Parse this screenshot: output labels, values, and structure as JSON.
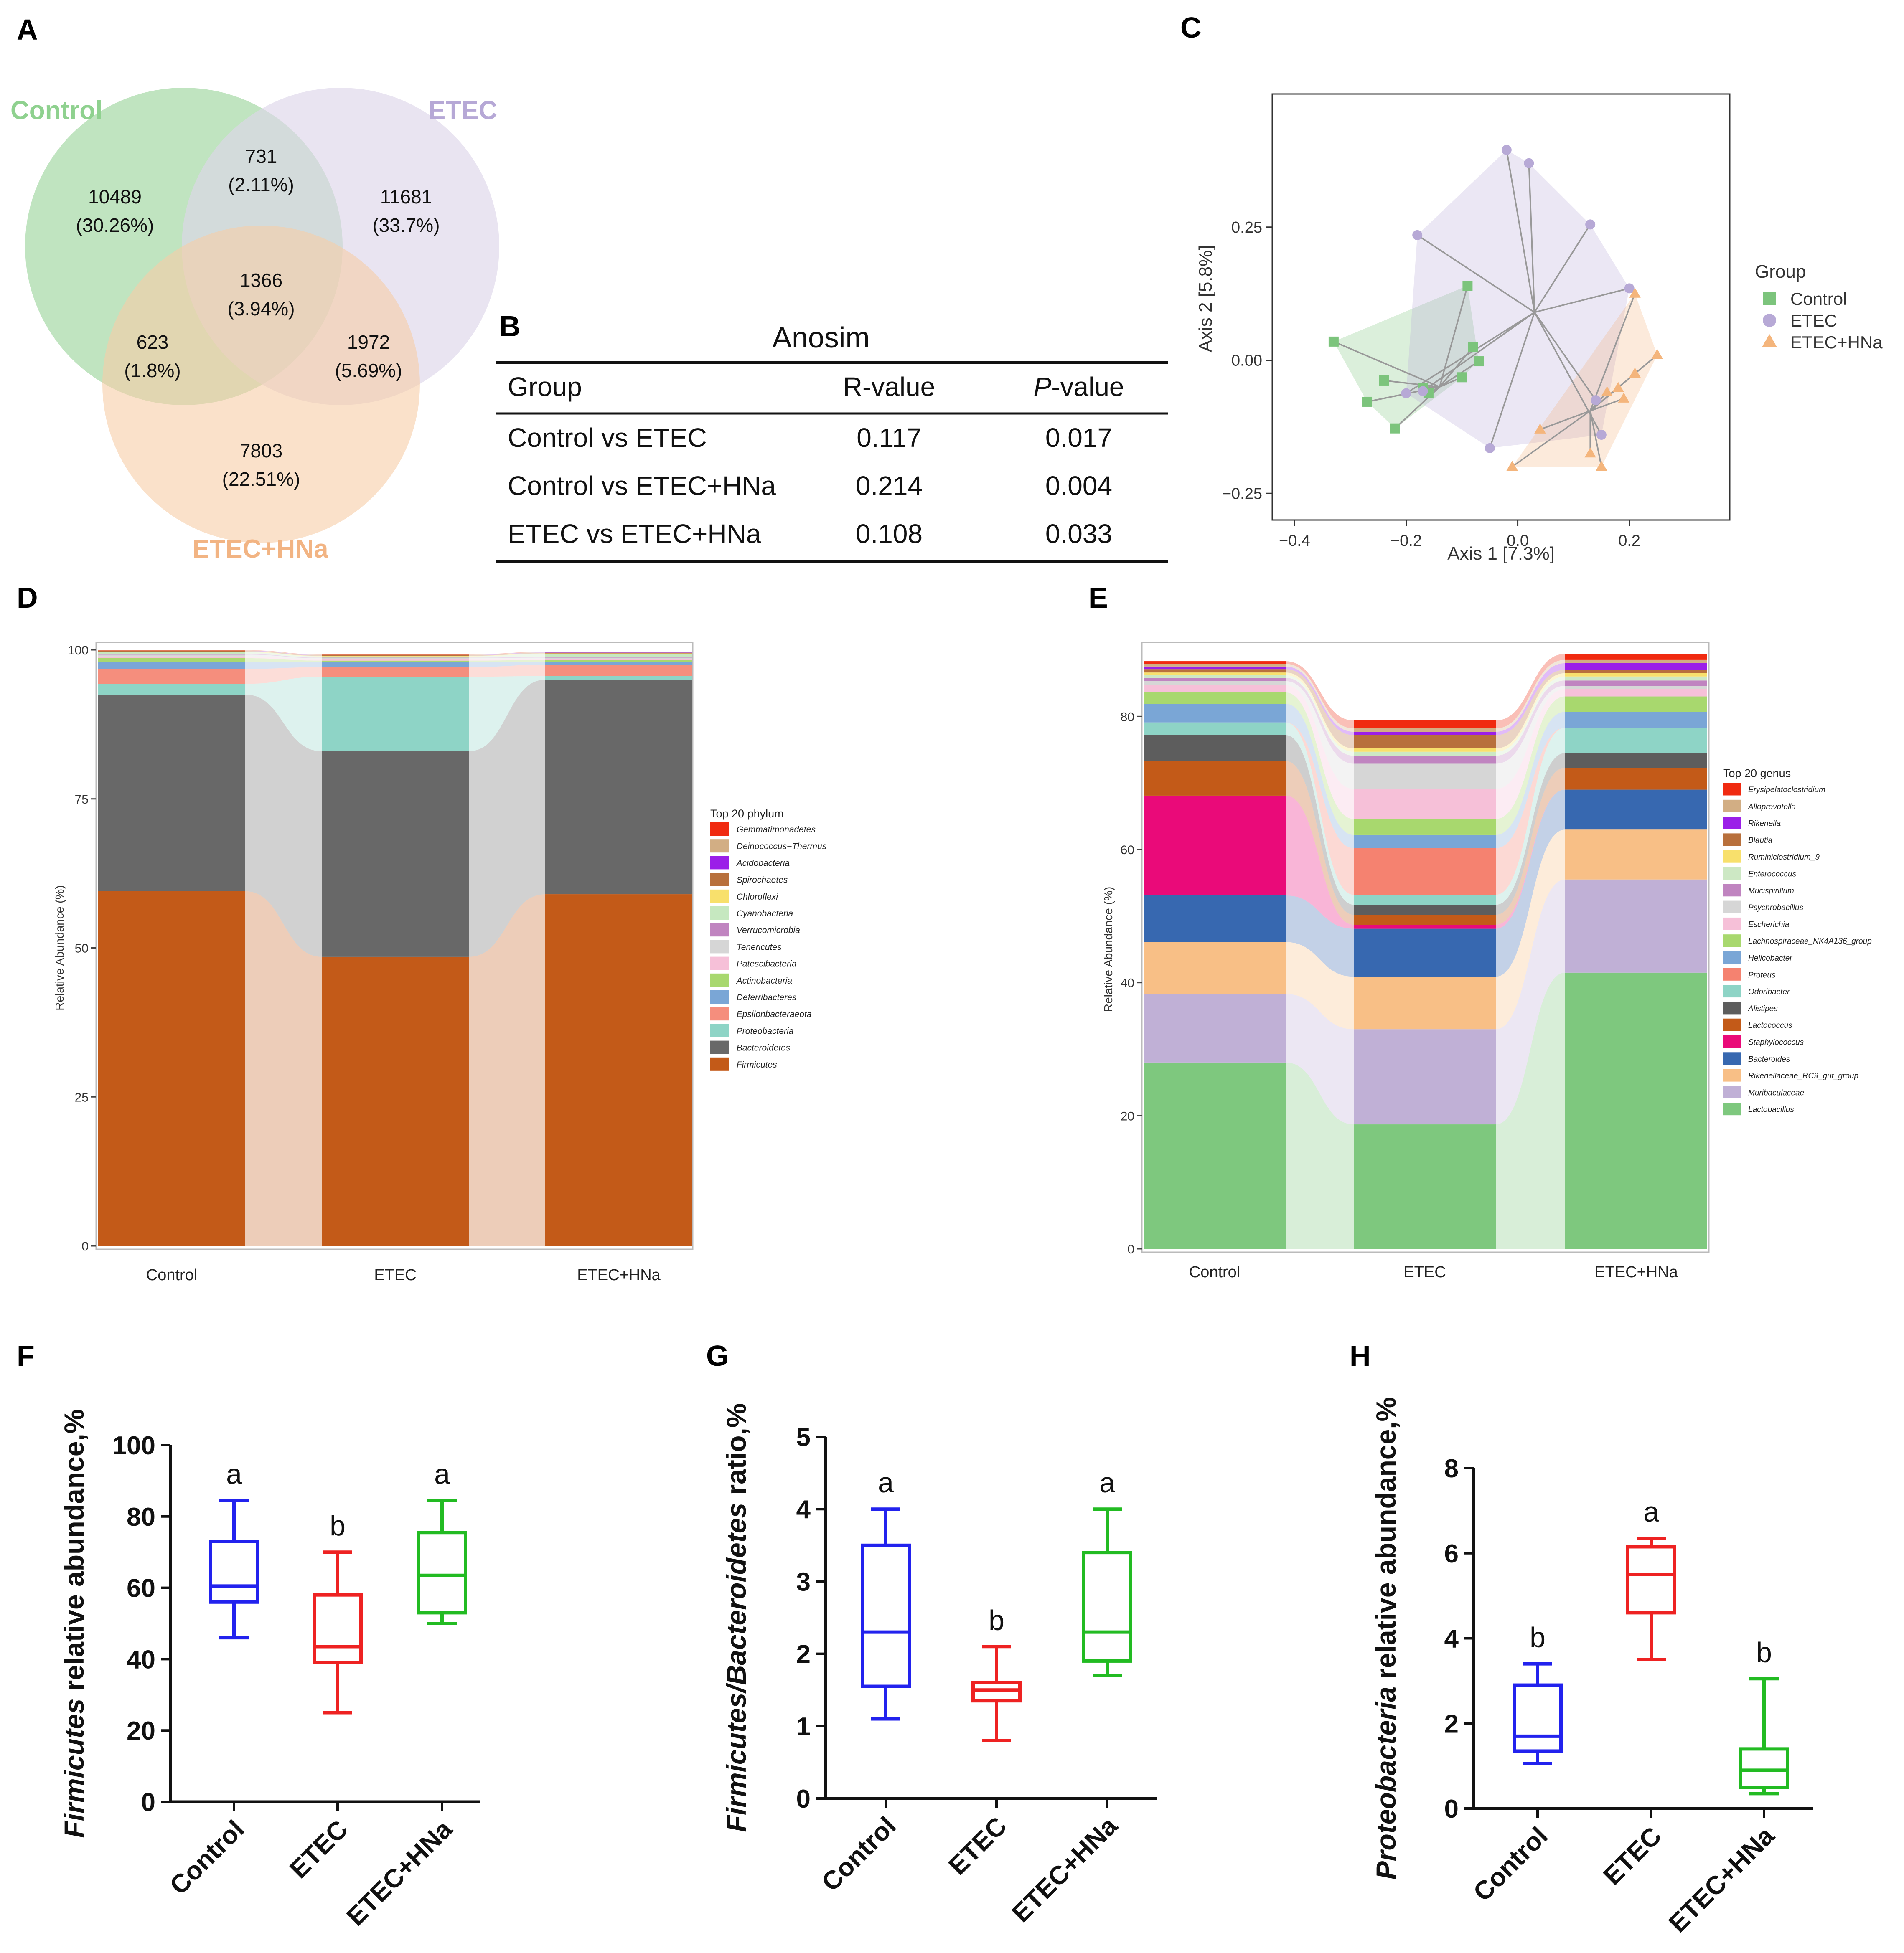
{
  "panel_labels": {
    "A": "A",
    "B": "B",
    "C": "C",
    "D": "D",
    "E": "E",
    "F": "F",
    "G": "G",
    "H": "H"
  },
  "colors": {
    "control": "#2222ee",
    "etec": "#ee2222",
    "etec_hna": "#22bb22",
    "venn_control": "#bde3bd",
    "venn_etec": "#ddd6ea",
    "venn_hna": "#f6cda6",
    "venn_label_control": "#8fd18f",
    "venn_label_etec": "#b6a8d6",
    "venn_label_hna": "#f2b483"
  },
  "venn": {
    "labels": {
      "control": "Control",
      "etec": "ETEC",
      "hna": "ETEC+HNa"
    },
    "regions": [
      {
        "id": "c_only",
        "count": "10489",
        "pct": "(30.26%)"
      },
      {
        "id": "ce",
        "count": "731",
        "pct": "(2.11%)"
      },
      {
        "id": "e_only",
        "count": "11681",
        "pct": "(33.7%)"
      },
      {
        "id": "all",
        "count": "1366",
        "pct": "(3.94%)"
      },
      {
        "id": "ch",
        "count": "623",
        "pct": "(1.8%)"
      },
      {
        "id": "eh",
        "count": "1972",
        "pct": "(5.69%)"
      },
      {
        "id": "h_only",
        "count": "7803",
        "pct": "(22.51%)"
      }
    ]
  },
  "anosim": {
    "title": "Anosim",
    "headers": [
      "Group",
      "R-value",
      "P-value"
    ],
    "rows": [
      [
        "Control vs ETEC",
        "0.117",
        "0.017"
      ],
      [
        "Control vs ETEC+HNa",
        "0.214",
        "0.004"
      ],
      [
        "ETEC vs ETEC+HNa",
        "0.108",
        "0.033"
      ]
    ]
  },
  "chart_data": [
    {
      "panel": "C",
      "type": "scatter",
      "xlabel": "Axis 1 [7.3%]",
      "ylabel": "Axis 2 [5.8%]",
      "xlim": [
        -0.44,
        0.38
      ],
      "ylim": [
        -0.3,
        0.5
      ],
      "xticks": [
        -0.4,
        -0.2,
        0,
        0.2
      ],
      "xticklabels": [
        "−0.4",
        "−0.2",
        "0.0",
        "0.2"
      ],
      "yticks": [
        -0.25,
        0,
        0.25
      ],
      "yticklabels": [
        "−0.25",
        "0.00",
        "0.25"
      ],
      "legend_title": "Group",
      "legend_position": "right",
      "series": [
        {
          "name": "Control",
          "color": "#7cc47c",
          "marker": "square",
          "centroid": [
            -0.14,
            -0.05
          ],
          "points": [
            [
              -0.33,
              0.035
            ],
            [
              -0.09,
              0.14
            ],
            [
              -0.08,
              0.025
            ],
            [
              -0.07,
              -0.002
            ],
            [
              -0.1,
              -0.032
            ],
            [
              -0.24,
              -0.038
            ],
            [
              -0.27,
              -0.078
            ],
            [
              -0.22,
              -0.128
            ],
            [
              -0.16,
              -0.062
            ],
            [
              -0.17,
              -0.052
            ]
          ]
        },
        {
          "name": "ETEC",
          "color": "#b7a9d6",
          "marker": "circle",
          "centroid": [
            0.03,
            0.09
          ],
          "points": [
            [
              -0.02,
              0.395
            ],
            [
              0.02,
              0.37
            ],
            [
              0.13,
              0.255
            ],
            [
              -0.18,
              0.235
            ],
            [
              0.2,
              0.135
            ],
            [
              -0.05,
              -0.165
            ],
            [
              0.15,
              -0.14
            ],
            [
              0.14,
              -0.075
            ],
            [
              -0.2,
              -0.062
            ],
            [
              -0.17,
              -0.058
            ]
          ]
        },
        {
          "name": "ETEC+HNa",
          "color": "#f4b57c",
          "marker": "triangle",
          "centroid": [
            0.13,
            -0.095
          ],
          "points": [
            [
              0.21,
              0.125
            ],
            [
              0.25,
              0.01
            ],
            [
              0.21,
              -0.025
            ],
            [
              0.18,
              -0.052
            ],
            [
              0.19,
              -0.072
            ],
            [
              0.04,
              -0.13
            ],
            [
              0.13,
              -0.175
            ],
            [
              0.15,
              -0.2
            ],
            [
              -0.01,
              -0.2
            ],
            [
              0.16,
              -0.06
            ]
          ]
        }
      ]
    },
    {
      "panel": "D",
      "type": "bar",
      "stacked": true,
      "categories": [
        "Control",
        "ETEC",
        "ETEC+HNa"
      ],
      "ylabel": "Relative Abundance (%)",
      "ylim": [
        0,
        100
      ],
      "yticks": [
        0,
        25,
        50,
        75,
        100
      ],
      "legend_title": "Top 20 phylum",
      "series": [
        {
          "name": "Firmicutes",
          "color": "#c35a18",
          "values": [
            59.5,
            48.5,
            59
          ]
        },
        {
          "name": "Bacteroidetes",
          "color": "#686868",
          "values": [
            33,
            34.5,
            36
          ]
        },
        {
          "name": "Proteobacteria",
          "color": "#8ed4c6",
          "values": [
            1.8,
            12.5,
            0.6
          ]
        },
        {
          "name": "Epsilonbacteraeota",
          "color": "#f58e7d",
          "values": [
            2.5,
            1.6,
            1.9
          ]
        },
        {
          "name": "Deferribacteres",
          "color": "#7aa6d6",
          "values": [
            1.2,
            0.8,
            0.5
          ]
        },
        {
          "name": "Actinobacteria",
          "color": "#a8d86e",
          "values": [
            0.6,
            0.3,
            0.3
          ]
        },
        {
          "name": "Patescibacteria",
          "color": "#f6c0d8",
          "values": [
            0.3,
            0.2,
            0.2
          ]
        },
        {
          "name": "Tenericutes",
          "color": "#d6d6d6",
          "values": [
            0.3,
            0.2,
            0.2
          ]
        },
        {
          "name": "Verrucomicrobia",
          "color": "#c084c0",
          "values": [
            0.1,
            0.1,
            0.1
          ]
        },
        {
          "name": "Cyanobacteria",
          "color": "#c6e8c0",
          "values": [
            0.3,
            0.2,
            0.5
          ]
        },
        {
          "name": "Chloroflexi",
          "color": "#f8e06c",
          "values": [
            0.1,
            0.1,
            0.1
          ]
        },
        {
          "name": "Spirochaetes",
          "color": "#b8703c",
          "values": [
            0.1,
            0.1,
            0.1
          ]
        },
        {
          "name": "Acidobacteria",
          "color": "#9b1fe8",
          "values": [
            0.05,
            0.05,
            0.05
          ]
        },
        {
          "name": "Deinococcus−Thermus",
          "color": "#d2ae84",
          "values": [
            0.05,
            0.05,
            0.05
          ]
        },
        {
          "name": "Gemmatimonadetes",
          "color": "#f02a10",
          "values": [
            0.05,
            0.05,
            0.05
          ]
        }
      ]
    },
    {
      "panel": "E",
      "type": "bar",
      "stacked": true,
      "categories": [
        "Control",
        "ETEC",
        "ETEC+HNa"
      ],
      "ylabel": "Relative Abundance (%)",
      "ylim": [
        0,
        90
      ],
      "yticks": [
        0,
        20,
        40,
        60,
        80
      ],
      "legend_title": "Top 20 genus",
      "series": [
        {
          "name": "Lactobacillus",
          "color": "#7ec87e",
          "values": [
            28,
            18.7,
            41.5
          ]
        },
        {
          "name": "Muribaculaceae",
          "color": "#c0b0d6",
          "values": [
            10.3,
            14.3,
            14
          ]
        },
        {
          "name": "Rikenellaceae_RC9_gut_group",
          "color": "#f8bf86",
          "values": [
            7.8,
            7.9,
            7.5
          ]
        },
        {
          "name": "Bacteroides",
          "color": "#3768b0",
          "values": [
            7,
            7.2,
            6
          ]
        },
        {
          "name": "Staphylococcus",
          "color": "#ea0a79",
          "values": [
            15,
            0.6,
            0
          ]
        },
        {
          "name": "Lactococcus",
          "color": "#c35a18",
          "values": [
            5.2,
            1.5,
            3.3
          ]
        },
        {
          "name": "Alistipes",
          "color": "#5d5d5d",
          "values": [
            3.9,
            1.5,
            2.2
          ]
        },
        {
          "name": "Odoribacter",
          "color": "#8ed4c6",
          "values": [
            1.9,
            1.5,
            3.8
          ]
        },
        {
          "name": "Proteus",
          "color": "#f58270",
          "values": [
            0,
            7,
            0
          ]
        },
        {
          "name": "Helicobacter",
          "color": "#7aa6d6",
          "values": [
            2.8,
            2,
            2.4
          ]
        },
        {
          "name": "Lachnospiraceae_NK4A136_group",
          "color": "#a8d86e",
          "values": [
            1.7,
            2.4,
            2.3
          ]
        },
        {
          "name": "Escherichia",
          "color": "#f6c0d8",
          "values": [
            1.1,
            4.5,
            1.1
          ]
        },
        {
          "name": "Psychrobacillus",
          "color": "#d6d6d6",
          "values": [
            0.6,
            3.8,
            0.5
          ]
        },
        {
          "name": "Mucispirillum",
          "color": "#c084c0",
          "values": [
            0.5,
            1.2,
            0.8
          ]
        },
        {
          "name": "Enterococcus",
          "color": "#cde8c4",
          "values": [
            0.4,
            0.6,
            0.6
          ]
        },
        {
          "name": "Ruminiclostridium_9",
          "color": "#f8e06c",
          "values": [
            0.4,
            0.5,
            0.5
          ]
        },
        {
          "name": "Blautia",
          "color": "#b8703c",
          "values": [
            0.5,
            2,
            0.5
          ]
        },
        {
          "name": "Rikenella",
          "color": "#9b1fe8",
          "values": [
            0.4,
            0.5,
            1
          ]
        },
        {
          "name": "Alloprevotella",
          "color": "#d2ae84",
          "values": [
            0.4,
            0.5,
            0.5
          ]
        },
        {
          "name": "Erysipelatoclostridium",
          "color": "#f02a10",
          "values": [
            0.4,
            1.2,
            0.9
          ]
        }
      ]
    },
    {
      "panel": "F",
      "type": "box",
      "categories": [
        "Control",
        "ETEC",
        "ETEC+HNa"
      ],
      "ylabel_italic": "Firmicutes",
      "ylabel_rest": " relative abundance,%",
      "ylim": [
        0,
        100
      ],
      "yticks": [
        0,
        20,
        40,
        60,
        80,
        100
      ],
      "boxes": [
        {
          "min": 46,
          "q1": 56,
          "median": 60.5,
          "q3": 73,
          "max": 84.5,
          "letter": "a"
        },
        {
          "min": 25,
          "q1": 39,
          "median": 43.5,
          "q3": 58,
          "max": 70,
          "letter": "b"
        },
        {
          "min": 50,
          "q1": 53,
          "median": 63.5,
          "q3": 75.5,
          "max": 84.5,
          "letter": "a"
        }
      ]
    },
    {
      "panel": "G",
      "type": "box",
      "categories": [
        "Control",
        "ETEC",
        "ETEC+HNa"
      ],
      "ylabel_italic": "Firmicutes/Bacteroidetes",
      "ylabel_rest": " ratio,%",
      "ylim": [
        0,
        5
      ],
      "yticks": [
        0,
        1,
        2,
        3,
        4,
        5
      ],
      "boxes": [
        {
          "min": 1.1,
          "q1": 1.55,
          "median": 2.3,
          "q3": 3.5,
          "max": 4,
          "letter": "a"
        },
        {
          "min": 0.8,
          "q1": 1.35,
          "median": 1.5,
          "q3": 1.6,
          "max": 2.1,
          "letter": "b"
        },
        {
          "min": 1.7,
          "q1": 1.9,
          "median": 2.3,
          "q3": 3.4,
          "max": 4,
          "letter": "a"
        }
      ]
    },
    {
      "panel": "H",
      "type": "box",
      "categories": [
        "Control",
        "ETEC",
        "ETEC+HNa"
      ],
      "ylabel_italic": "Proteobacteria",
      "ylabel_rest": " relative abundance,%",
      "ylim": [
        0,
        8
      ],
      "yticks": [
        0,
        2,
        4,
        6,
        8
      ],
      "boxes": [
        {
          "min": 1.05,
          "q1": 1.35,
          "median": 1.7,
          "q3": 2.9,
          "max": 3.4,
          "letter": "b"
        },
        {
          "min": 3.5,
          "q1": 4.6,
          "median": 5.5,
          "q3": 6.15,
          "max": 6.35,
          "letter": "a"
        },
        {
          "min": 0.35,
          "q1": 0.5,
          "median": 0.9,
          "q3": 1.4,
          "max": 3.05,
          "letter": "b"
        }
      ]
    }
  ]
}
